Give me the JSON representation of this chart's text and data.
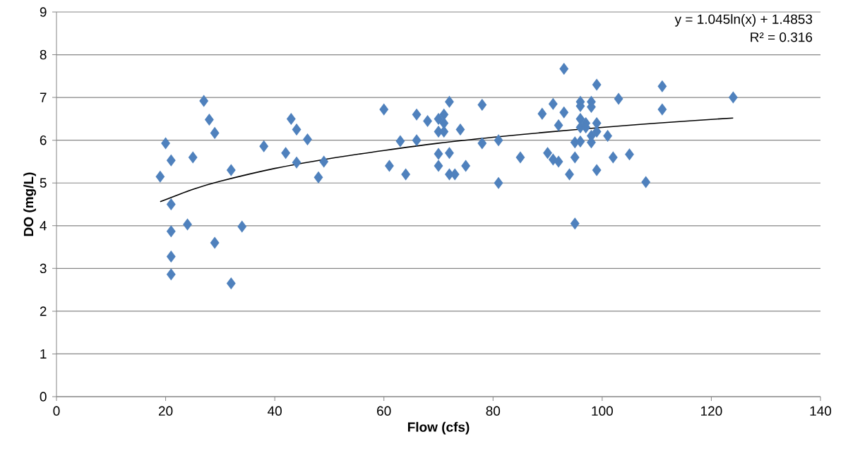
{
  "chart_data": {
    "type": "scatter",
    "xlabel": "Flow (cfs)",
    "ylabel": "DO (mg/L)",
    "xlim": [
      0,
      140
    ],
    "xticks": [
      0,
      20,
      40,
      60,
      80,
      100,
      120,
      140
    ],
    "ylim": [
      0,
      9
    ],
    "yticks": [
      0,
      1,
      2,
      3,
      4,
      5,
      6,
      7,
      8,
      9
    ],
    "grid": "y",
    "annotations": [
      "y = 1.045ln(x) + 1.4853",
      "R² = 0.316"
    ],
    "series": [
      {
        "marker": "diamond",
        "color": "#4f81bd",
        "x": [
          19,
          20,
          21,
          21,
          21,
          21,
          21,
          24,
          25,
          27,
          28,
          29,
          29,
          32,
          32,
          34,
          38,
          42,
          43,
          44,
          44,
          46,
          48,
          49,
          60,
          61,
          63,
          64,
          66,
          66,
          68,
          70,
          70,
          70,
          70,
          71,
          71,
          71,
          72,
          72,
          72,
          73,
          74,
          75,
          78,
          78,
          81,
          81,
          85,
          89,
          90,
          91,
          91,
          92,
          92,
          93,
          93,
          94,
          95,
          95,
          95,
          96,
          96,
          96,
          96,
          96,
          97,
          97,
          98,
          98,
          98,
          98,
          99,
          99,
          99,
          99,
          101,
          102,
          103,
          105,
          108,
          111,
          111,
          124
        ],
        "values": [
          5.15,
          5.93,
          5.53,
          4.5,
          3.87,
          3.28,
          2.86,
          4.03,
          5.6,
          6.92,
          6.48,
          6.17,
          3.6,
          5.3,
          2.65,
          3.98,
          5.86,
          5.7,
          6.5,
          6.25,
          5.48,
          6.02,
          5.13,
          5.5,
          6.72,
          5.4,
          5.98,
          5.2,
          6.6,
          6.0,
          6.45,
          6.5,
          6.2,
          5.68,
          5.4,
          6.6,
          6.4,
          6.2,
          6.9,
          5.7,
          5.2,
          5.2,
          6.25,
          5.4,
          6.83,
          5.93,
          6.0,
          5.0,
          5.6,
          6.62,
          5.7,
          6.85,
          5.55,
          6.35,
          5.5,
          7.67,
          6.65,
          5.2,
          5.95,
          5.6,
          4.05,
          6.9,
          6.8,
          6.5,
          6.3,
          5.97,
          6.4,
          6.3,
          6.9,
          6.78,
          6.1,
          5.95,
          7.3,
          6.4,
          6.2,
          5.3,
          6.1,
          5.6,
          6.97,
          5.67,
          5.02,
          7.26,
          6.72,
          7.0
        ]
      },
      {
        "type": "line",
        "marker": "none",
        "line_style": "solid",
        "color": "#000000",
        "x": [
          19,
          25,
          30,
          40,
          50,
          60,
          70,
          80,
          90,
          100,
          110,
          124
        ],
        "values": [
          4.56,
          4.85,
          5.04,
          5.34,
          5.57,
          5.76,
          5.93,
          6.07,
          6.19,
          6.3,
          6.4,
          6.52
        ]
      }
    ]
  }
}
